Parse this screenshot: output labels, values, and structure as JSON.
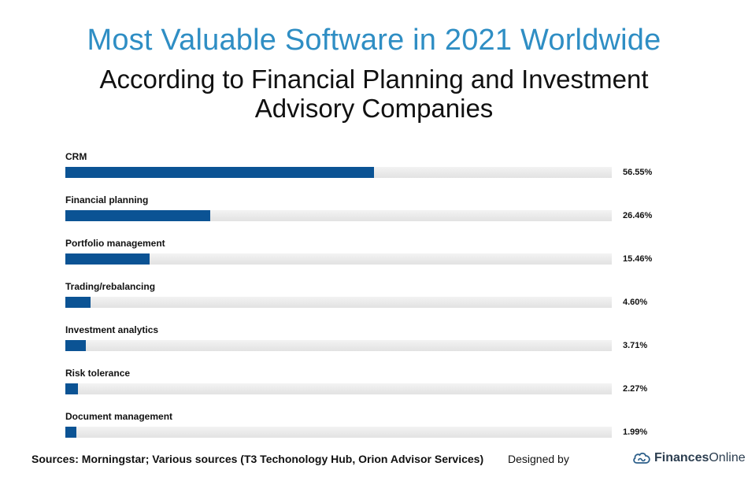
{
  "header": {
    "title": "Most Valuable Software in 2021 Worldwide",
    "subtitle": "According to Financial Planning and Investment Advisory Companies"
  },
  "chart_data": {
    "type": "bar",
    "orientation": "horizontal",
    "title": "Most Valuable Software in 2021 Worldwide",
    "subtitle": "According to Financial Planning and Investment Advisory Companies",
    "categories": [
      "CRM",
      "Financial planning",
      "Portfolio management",
      "Trading/rebalancing",
      "Investment analytics",
      "Risk tolerance",
      "Document management"
    ],
    "values": [
      56.55,
      26.46,
      15.46,
      4.6,
      3.71,
      2.27,
      1.99
    ],
    "value_labels": [
      "56.55%",
      "26.46%",
      "15.46%",
      "4.60%",
      "3.71%",
      "2.27%",
      "1.99%"
    ],
    "unit": "%",
    "xlim": [
      0,
      100
    ],
    "xlabel": "",
    "ylabel": "",
    "grid": false,
    "colors": {
      "bar": "#0b5394",
      "track": "#e6e6e6",
      "title": "#2f8ec4"
    }
  },
  "footer": {
    "sources": "Sources: Morningstar; Various sources (T3 Techonology Hub, Orion Advisor Services)",
    "designed_by": "Designed by",
    "brand_bold": "Finances",
    "brand_regular": "Online"
  }
}
